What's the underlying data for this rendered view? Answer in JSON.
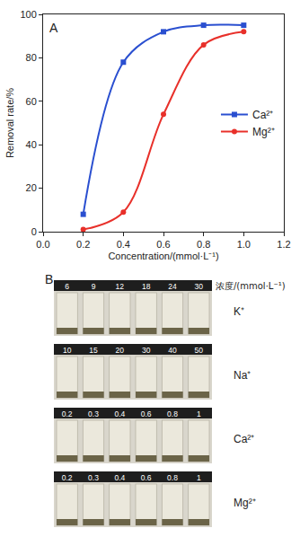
{
  "chart_data": {
    "type": "line",
    "annotations": [
      "A"
    ],
    "x_label": "Concentration/(mmol·L⁻¹)",
    "y_label": "Removal rate/%",
    "series": [
      {
        "name": "Ca²⁺",
        "color": "#2a4fd0",
        "marker": "square",
        "line_style": "spline",
        "x": [
          0.2,
          0.4,
          0.6,
          0.8,
          1.0
        ],
        "values": [
          8,
          78,
          92,
          95,
          95
        ]
      },
      {
        "name": "Mg²⁺",
        "color": "#e8302a",
        "marker": "circle",
        "line_style": "spline",
        "x": [
          0.2,
          0.4,
          0.6,
          0.8,
          1.0
        ],
        "values": [
          1,
          9,
          54,
          86,
          92
        ]
      }
    ],
    "xlim": [
      0,
      1.2
    ],
    "xticks": [
      {
        "value": 0,
        "label": "0.0"
      },
      0.2,
      0.4,
      0.6,
      0.8,
      {
        "value": 1,
        "label": "1.0"
      },
      1.2
    ],
    "ylim": [
      0,
      100
    ],
    "yticks": [
      0,
      20,
      40,
      60,
      80,
      100
    ],
    "grid": false,
    "legend": "right"
  },
  "panel_b": {
    "label": "B",
    "unit_label": "浓度/(mmol·L⁻¹)",
    "rows": [
      {
        "ion": "K⁺",
        "concentrations": [
          6,
          9,
          12,
          18,
          24,
          30
        ]
      },
      {
        "ion": "Na⁺",
        "concentrations": [
          10,
          15,
          20,
          30,
          40,
          50
        ]
      },
      {
        "ion": "Ca²⁺",
        "concentrations": [
          0.2,
          0.3,
          0.4,
          0.6,
          0.8,
          1.0
        ]
      },
      {
        "ion": "Mg²⁺",
        "concentrations": [
          0.2,
          0.3,
          0.4,
          0.6,
          0.8,
          1.0
        ]
      }
    ]
  }
}
